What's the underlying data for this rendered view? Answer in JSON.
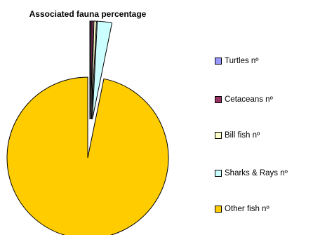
{
  "chart_data": {
    "type": "pie",
    "title": "Associated fauna percentage",
    "slices": [
      {
        "label": "Turtles  nº",
        "value": 0.1,
        "color": "#9999FF"
      },
      {
        "label": "Cetaceans  nº",
        "value": 0.3,
        "color": "#993366"
      },
      {
        "label": "Bill fish nº",
        "value": 0.4,
        "color": "#FFFFCC"
      },
      {
        "label": "Sharks & Rays  nº",
        "value": 2.4,
        "color": "#CCFFFF"
      },
      {
        "label": "Other fish  nº",
        "value": 96.8,
        "color": "#FFCC00"
      }
    ],
    "legend_position": "right",
    "exploded": true
  }
}
